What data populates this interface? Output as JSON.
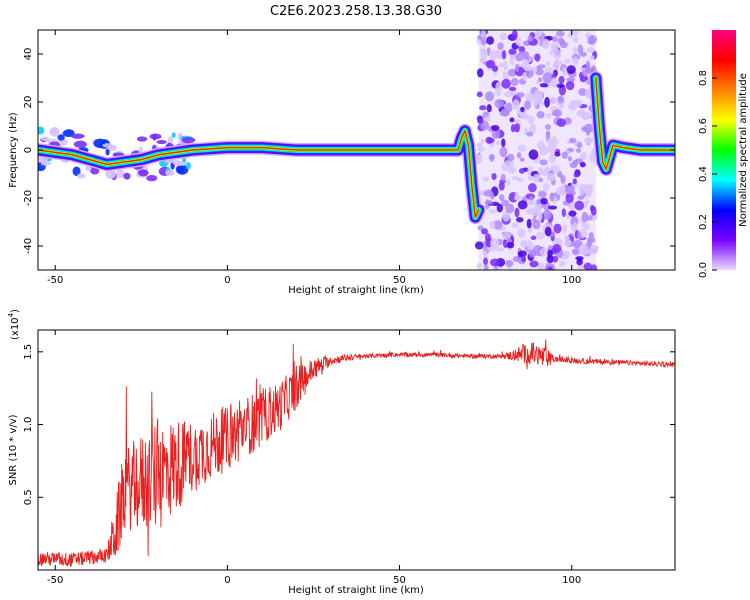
{
  "title": "C2E6.2023.258.13.38.G30",
  "chart_data": [
    {
      "type": "heatmap",
      "xlabel": "Height of straight line (km)",
      "ylabel": "Frequency (Hz)",
      "xlim": [
        -55,
        130
      ],
      "ylim": [
        -50,
        50
      ],
      "xticks": [
        -50,
        0,
        50,
        100
      ],
      "yticks": [
        -40,
        -20,
        0,
        20,
        40
      ],
      "colorbar": {
        "label": "Normalized spectral amplitude",
        "range": [
          0,
          1
        ],
        "ticks": [
          "0.0",
          "0.2",
          "0.4",
          "0.6",
          "0.8"
        ],
        "colormap": [
          "#e8d8ff",
          "#7a00ff",
          "#0000ff",
          "#00ffff",
          "#00ff00",
          "#ffff00",
          "#ff8000",
          "#ff0000",
          "#ff0080"
        ]
      },
      "ridge": {
        "x": [
          -55,
          -45,
          -40,
          -35,
          -30,
          -25,
          -20,
          -15,
          -10,
          0,
          10,
          20,
          30,
          40,
          50,
          60,
          65,
          67,
          68,
          69,
          70,
          71,
          72,
          73
        ],
        "y": [
          0,
          -2,
          -4,
          -6,
          -5,
          -4,
          -2,
          -1,
          0,
          1,
          1,
          0,
          0,
          0,
          0,
          0,
          0,
          0,
          5,
          8,
          2,
          -15,
          -28,
          -25
        ]
      },
      "noise_region": {
        "x": [
          73,
          107
        ],
        "y": [
          -50,
          50
        ]
      },
      "ridge_after": {
        "x": [
          107,
          108,
          109,
          110,
          112,
          115,
          120,
          125,
          130
        ],
        "y": [
          30,
          10,
          -5,
          -8,
          2,
          1,
          0,
          0,
          0
        ]
      }
    },
    {
      "type": "line",
      "xlabel": "Height of straight line (km)",
      "ylabel": "SNR (10 * v/v)",
      "yscale_label": "(x10",
      "yscale_exponent": "4",
      "xlim": [
        -55,
        130
      ],
      "ylim": [
        0,
        1.65
      ],
      "xticks": [
        -50,
        0,
        50,
        100
      ],
      "yticks": [
        0.5,
        1.0,
        1.5
      ],
      "ytick_labels": [
        "0.5",
        "1.0",
        "1.5"
      ],
      "color": "#e8201f",
      "envelope": {
        "x": [
          -55,
          -45,
          -35,
          -32,
          -30,
          -25,
          -20,
          -15,
          -10,
          -5,
          0,
          5,
          10,
          15,
          20,
          25,
          30,
          35,
          40,
          50,
          60,
          70,
          80,
          85,
          88,
          90,
          92,
          95,
          100,
          110,
          120,
          130
        ],
        "y": [
          0.08,
          0.07,
          0.1,
          0.3,
          0.55,
          0.6,
          0.65,
          0.72,
          0.78,
          0.85,
          0.9,
          0.98,
          1.05,
          1.12,
          1.25,
          1.38,
          1.44,
          1.46,
          1.47,
          1.48,
          1.48,
          1.47,
          1.47,
          1.48,
          1.49,
          1.48,
          1.46,
          1.45,
          1.44,
          1.43,
          1.42,
          1.41
        ]
      },
      "noise_amplitude": {
        "x": [
          -55,
          -35,
          -32,
          -20,
          -10,
          0,
          10,
          20,
          25,
          30,
          40,
          80,
          88,
          92,
          95,
          130
        ],
        "y": [
          0.05,
          0.05,
          0.25,
          0.4,
          0.25,
          0.22,
          0.2,
          0.15,
          0.08,
          0.03,
          0.015,
          0.015,
          0.08,
          0.08,
          0.02,
          0.015
        ]
      }
    }
  ]
}
